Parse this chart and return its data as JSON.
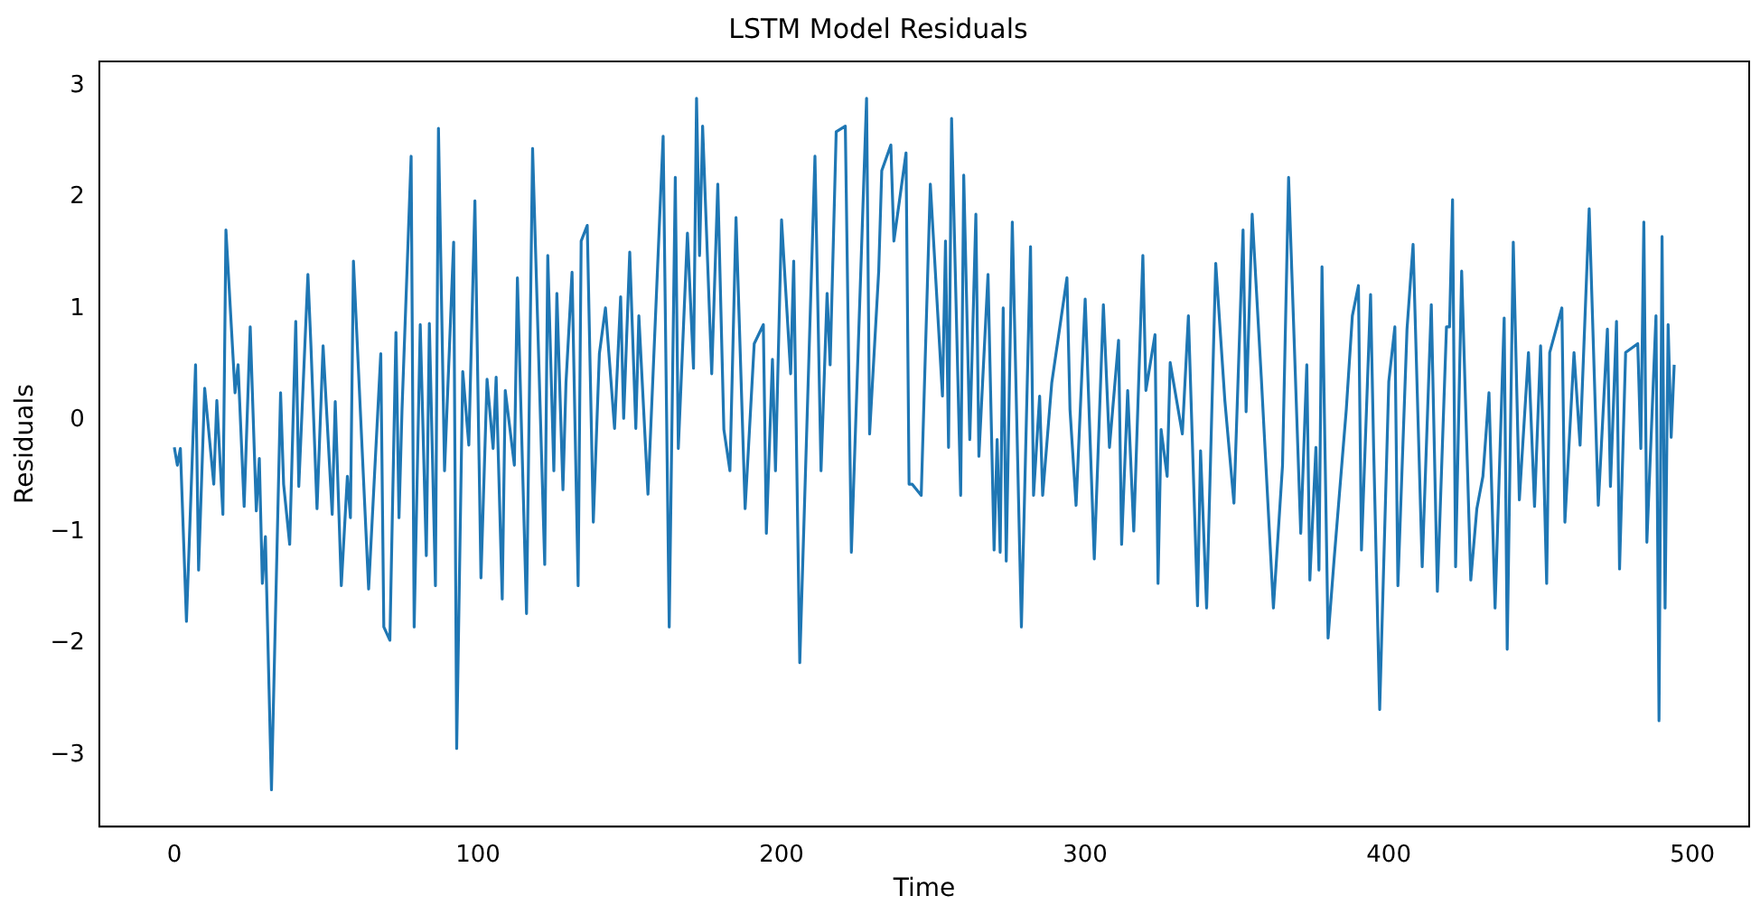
{
  "chart_data": {
    "type": "line",
    "title": "LSTM Model Residuals",
    "xlabel": "Time",
    "ylabel": "Residuals",
    "xlim": [
      -24.7,
      518.7
    ],
    "ylim": [
      -3.64,
      3.22
    ],
    "xticks": [
      0,
      100,
      200,
      300,
      400,
      500
    ],
    "yticks": [
      -3,
      -2,
      -1,
      0,
      1,
      2,
      3
    ],
    "grid": false,
    "legend": false,
    "marker": "none",
    "line_style": "solid",
    "series": [
      {
        "color": "#1f77b4",
        "x": [
          0,
          1,
          2,
          4,
          7,
          8,
          10,
          13,
          14,
          16,
          17,
          20,
          21,
          23,
          25,
          27,
          28,
          29,
          30,
          32,
          35,
          36,
          38,
          40,
          41,
          44,
          45,
          47,
          49,
          52,
          53,
          55,
          57,
          58,
          59,
          62,
          64,
          68,
          69,
          71,
          73,
          74,
          75,
          78,
          79,
          81,
          83,
          84,
          86,
          87,
          89,
          92,
          93,
          95,
          97,
          99,
          101,
          103,
          105,
          106,
          108,
          109,
          112,
          113,
          116,
          118,
          122,
          123,
          125,
          126,
          128,
          129,
          131,
          133,
          134,
          136,
          138,
          140,
          142,
          145,
          147,
          148,
          150,
          152,
          153,
          156,
          161,
          163,
          165,
          166,
          169,
          171,
          172,
          173,
          174,
          177,
          179,
          181,
          183,
          185,
          188,
          191,
          194,
          195,
          197,
          198,
          200,
          203,
          204,
          206,
          211,
          213,
          215,
          216,
          218,
          221,
          223,
          228,
          229,
          232,
          233,
          236,
          237,
          241,
          242,
          243,
          246,
          249,
          253,
          254,
          255,
          256,
          259,
          260,
          262,
          264,
          265,
          268,
          270,
          271,
          272,
          273,
          274,
          276,
          279,
          282,
          283,
          285,
          286,
          289,
          294,
          295,
          297,
          300,
          303,
          306,
          308,
          311,
          312,
          314,
          316,
          319,
          320,
          323,
          324,
          325,
          327,
          328,
          332,
          334,
          337,
          338,
          340,
          343,
          346,
          349,
          352,
          353,
          355,
          358,
          362,
          365,
          367,
          371,
          373,
          374,
          376,
          377,
          378,
          380,
          382,
          386,
          388,
          390,
          391,
          394,
          395,
          397,
          400,
          402,
          403,
          406,
          408,
          411,
          414,
          416,
          419,
          420,
          421,
          422,
          424,
          427,
          429,
          431,
          433,
          435,
          438,
          439,
          441,
          443,
          446,
          448,
          450,
          452,
          453,
          457,
          458,
          461,
          463,
          466,
          469,
          472,
          473,
          475,
          476,
          478,
          482,
          483,
          484,
          485,
          488,
          489,
          490,
          491,
          492,
          493,
          494
        ],
        "values": [
          -0.24,
          -0.4,
          -0.25,
          -1.8,
          0.5,
          -1.34,
          0.29,
          -0.57,
          0.18,
          -0.84,
          1.71,
          0.25,
          0.5,
          -0.77,
          0.84,
          -0.81,
          -0.34,
          -1.46,
          -1.04,
          -3.31,
          0.25,
          -0.57,
          -1.11,
          0.89,
          -0.59,
          1.31,
          0.67,
          -0.79,
          0.67,
          -0.84,
          0.17,
          -1.48,
          -0.5,
          -0.87,
          1.43,
          -0.34,
          -1.51,
          0.6,
          -1.85,
          -1.97,
          0.79,
          -0.87,
          0.1,
          2.37,
          -1.85,
          0.86,
          -1.21,
          0.87,
          -1.48,
          2.62,
          -0.45,
          1.6,
          -2.94,
          0.44,
          -0.22,
          1.97,
          -1.41,
          0.37,
          -0.25,
          0.39,
          -1.6,
          0.27,
          -0.4,
          1.28,
          -1.73,
          2.44,
          -1.29,
          1.48,
          -0.45,
          1.14,
          -0.62,
          0.34,
          1.33,
          -1.48,
          1.61,
          1.75,
          -0.91,
          0.6,
          1.01,
          -0.07,
          1.11,
          0.02,
          1.51,
          -0.07,
          0.94,
          -0.66,
          2.55,
          -1.85,
          2.18,
          -0.25,
          1.68,
          0.47,
          2.89,
          1.48,
          2.64,
          0.42,
          2.12,
          -0.08,
          -0.45,
          1.82,
          -0.79,
          0.69,
          0.86,
          -1.01,
          0.55,
          -0.45,
          1.8,
          0.42,
          1.43,
          -2.17,
          2.37,
          -0.45,
          1.14,
          0.5,
          2.59,
          2.64,
          -1.18,
          2.89,
          -0.12,
          1.34,
          2.24,
          2.47,
          1.61,
          2.4,
          -0.57,
          -0.57,
          -0.67,
          2.12,
          0.22,
          1.61,
          -0.24,
          2.71,
          -0.67,
          2.2,
          -0.17,
          1.85,
          -0.32,
          1.31,
          -1.16,
          -0.17,
          -1.18,
          1.01,
          -1.26,
          1.78,
          -1.85,
          1.56,
          -0.67,
          0.22,
          -0.67,
          0.34,
          1.28,
          0.1,
          -0.76,
          1.09,
          -1.24,
          1.04,
          -0.24,
          0.72,
          -1.11,
          0.27,
          -0.99,
          1.48,
          0.27,
          0.77,
          -1.46,
          -0.08,
          -0.5,
          0.52,
          -0.12,
          0.94,
          -1.66,
          -0.27,
          -1.68,
          1.41,
          0.18,
          -0.74,
          1.71,
          0.08,
          1.85,
          0.39,
          -1.68,
          -0.4,
          2.18,
          -1.01,
          0.5,
          -1.43,
          -0.24,
          -1.34,
          1.38,
          -1.95,
          -1.24,
          0.1,
          0.94,
          1.21,
          -1.16,
          1.13,
          -0.24,
          -2.59,
          0.35,
          0.84,
          -1.48,
          0.82,
          1.58,
          -1.31,
          1.04,
          -1.53,
          0.84,
          0.84,
          1.98,
          -1.31,
          1.34,
          -1.43,
          -0.79,
          -0.5,
          0.25,
          -1.68,
          0.92,
          -2.05,
          1.6,
          -0.71,
          0.61,
          -0.77,
          0.67,
          -1.46,
          0.61,
          1.01,
          -0.91,
          0.61,
          -0.22,
          1.9,
          -0.76,
          0.82,
          -0.59,
          0.89,
          -1.33,
          0.61,
          0.69,
          -0.25,
          1.78,
          -1.09,
          0.94,
          -2.69,
          1.65,
          -1.68,
          0.86,
          -0.15,
          0.5
        ]
      }
    ]
  }
}
